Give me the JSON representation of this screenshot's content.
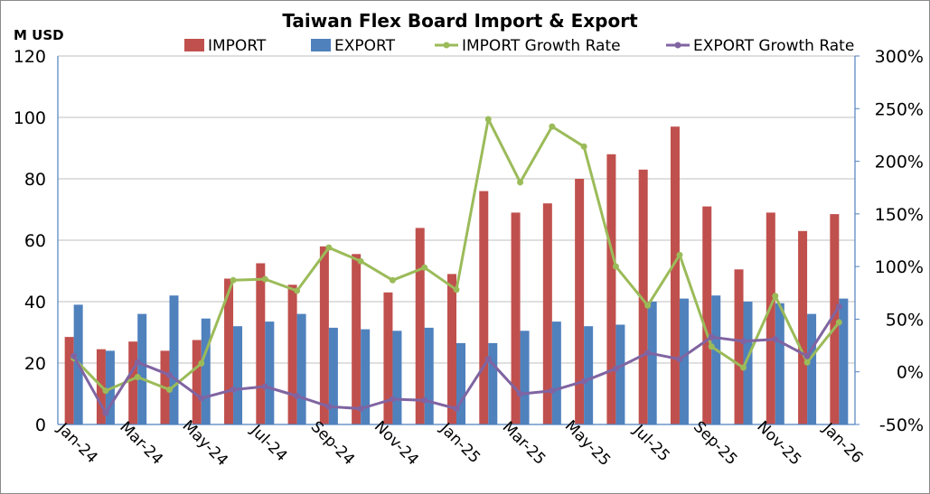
{
  "chart_data": {
    "type": "bar",
    "title": "Taiwan Flex Board Import & Export",
    "ylabel": "M USD",
    "ylim": [
      0,
      120
    ],
    "y_ticks": [
      "0",
      "20",
      "40",
      "60",
      "80",
      "100",
      "120"
    ],
    "y2lim": [
      -50,
      300
    ],
    "y2_ticks": [
      "-50%",
      "0%",
      "50%",
      "100%",
      "150%",
      "200%",
      "250%",
      "300%"
    ],
    "categories": [
      "Jan-24",
      "Feb-24",
      "Mar-24",
      "Apr-24",
      "May-24",
      "Jun-24",
      "Jul-24",
      "Aug-24",
      "Sep-24",
      "Oct-24",
      "Nov-24",
      "Dec-24",
      "Jan-25",
      "Feb-25",
      "Mar-25",
      "Apr-25",
      "May-25",
      "Jun-25",
      "Jul-25",
      "Aug-25",
      "Sep-25",
      "Oct-25",
      "Nov-25",
      "Dec-25",
      "Jan-26"
    ],
    "x_tick_labels": [
      "Jan-24",
      "Mar-24",
      "May-24",
      "Jul-24",
      "Sep-24",
      "Nov-24",
      "Jan-25",
      "Mar-25",
      "May-25",
      "Jul-25",
      "Sep-25",
      "Nov-25",
      "Jan-26"
    ],
    "grid": "horizontal",
    "legend": "top",
    "series": [
      {
        "name": "IMPORT",
        "type": "bar",
        "axis": "left",
        "color": "#c0504d",
        "values": [
          28.5,
          24.5,
          27,
          24,
          27.5,
          47.5,
          52.5,
          45.5,
          58,
          55.5,
          43,
          64,
          49,
          76,
          69,
          72,
          80,
          88,
          83,
          97,
          71,
          50.5,
          69,
          63,
          68.5
        ]
      },
      {
        "name": "EXPORT",
        "type": "bar",
        "axis": "left",
        "color": "#4f81bd",
        "values": [
          39,
          24,
          36,
          42,
          34.5,
          32,
          33.5,
          36,
          31.5,
          31,
          30.5,
          31.5,
          26.5,
          26.5,
          30.5,
          33.5,
          32,
          32.5,
          40,
          41,
          42,
          40,
          39.5,
          36,
          41
        ]
      },
      {
        "name": "IMPORT Growth Rate",
        "type": "line",
        "axis": "right",
        "color": "#9bbb59",
        "values": [
          13,
          -18,
          -5,
          -17,
          8,
          87,
          88,
          77,
          118,
          105,
          87,
          99,
          78,
          240,
          180,
          233,
          214,
          100,
          63,
          111,
          24,
          4,
          72,
          9,
          47
        ]
      },
      {
        "name": "EXPORT Growth Rate",
        "type": "line",
        "axis": "right",
        "color": "#8064a2",
        "values": [
          15,
          -39,
          9,
          -3,
          -25,
          -17,
          -14,
          -23,
          -33,
          -35,
          -26,
          -27,
          -35,
          12,
          -21,
          -18,
          -9,
          3,
          18,
          12,
          33,
          29,
          31,
          15,
          62
        ]
      }
    ]
  }
}
